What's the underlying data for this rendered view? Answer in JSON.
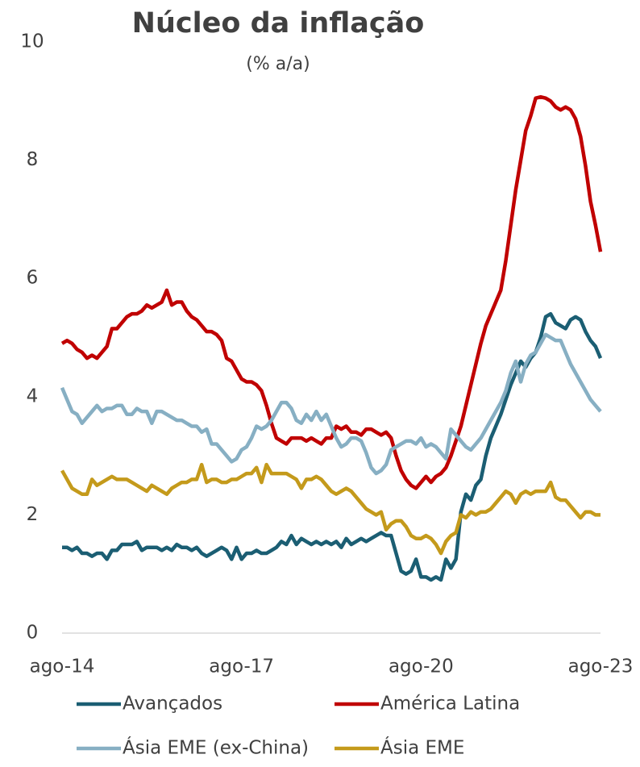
{
  "chart_data": {
    "type": "line",
    "title": "Núcleo da inflação",
    "subtitle": "(% a/a)",
    "categories": [
      "ago-14",
      null,
      null,
      null,
      null,
      null,
      null,
      null,
      null,
      null,
      null,
      null,
      null,
      null,
      null,
      null,
      null,
      null,
      null,
      null,
      null,
      null,
      null,
      null,
      null,
      null,
      null,
      null,
      null,
      null,
      null,
      null,
      null,
      null,
      null,
      null,
      "ago-17",
      null,
      null,
      null,
      null,
      null,
      null,
      null,
      null,
      null,
      null,
      null,
      null,
      null,
      null,
      null,
      null,
      null,
      null,
      null,
      null,
      null,
      null,
      null,
      null,
      null,
      null,
      null,
      null,
      null,
      null,
      null,
      null,
      null,
      null,
      null,
      "ago-20",
      null,
      null,
      null,
      null,
      null,
      null,
      null,
      null,
      null,
      null,
      null,
      null,
      null,
      null,
      null,
      null,
      null,
      null,
      null,
      null,
      null,
      null,
      null,
      null,
      null,
      null,
      null,
      null,
      null,
      null,
      null,
      null,
      null,
      null,
      null,
      "ago-23"
    ],
    "series": [
      {
        "name": "Avançados",
        "color": "#1b5e73",
        "values": [
          1.45,
          1.45,
          1.4,
          1.45,
          1.35,
          1.35,
          1.3,
          1.35,
          1.35,
          1.25,
          1.4,
          1.4,
          1.5,
          1.5,
          1.5,
          1.55,
          1.4,
          1.45,
          1.45,
          1.45,
          1.4,
          1.45,
          1.4,
          1.5,
          1.45,
          1.45,
          1.4,
          1.45,
          1.35,
          1.3,
          1.35,
          1.4,
          1.45,
          1.4,
          1.25,
          1.45,
          1.25,
          1.35,
          1.35,
          1.4,
          1.35,
          1.35,
          1.4,
          1.45,
          1.55,
          1.5,
          1.65,
          1.5,
          1.6,
          1.55,
          1.5,
          1.55,
          1.5,
          1.55,
          1.5,
          1.55,
          1.45,
          1.6,
          1.5,
          1.55,
          1.6,
          1.55,
          1.6,
          1.65,
          1.7,
          1.65,
          1.65,
          1.35,
          1.05,
          1.0,
          1.05,
          1.25,
          0.95,
          0.95,
          0.9,
          0.95,
          0.9,
          1.25,
          1.1,
          1.25,
          2.05,
          2.35,
          2.25,
          2.5,
          2.6,
          3.0,
          3.3,
          3.5,
          3.7,
          3.95,
          4.2,
          4.4,
          4.6,
          4.5,
          4.65,
          4.75,
          5.0,
          5.35,
          5.4,
          5.25,
          5.2,
          5.15,
          5.3,
          5.35,
          5.3,
          5.1,
          4.95,
          4.85,
          4.65
        ]
      },
      {
        "name": "América Latina",
        "color": "#c00000",
        "values": [
          4.9,
          4.95,
          4.9,
          4.8,
          4.75,
          4.65,
          4.7,
          4.65,
          4.75,
          4.85,
          5.15,
          5.15,
          5.25,
          5.35,
          5.4,
          5.4,
          5.45,
          5.55,
          5.5,
          5.55,
          5.6,
          5.8,
          5.55,
          5.6,
          5.6,
          5.45,
          5.35,
          5.3,
          5.2,
          5.1,
          5.1,
          5.05,
          4.95,
          4.65,
          4.6,
          4.45,
          4.3,
          4.25,
          4.25,
          4.2,
          4.1,
          3.85,
          3.55,
          3.3,
          3.25,
          3.2,
          3.3,
          3.3,
          3.3,
          3.25,
          3.3,
          3.25,
          3.2,
          3.3,
          3.3,
          3.5,
          3.45,
          3.5,
          3.4,
          3.4,
          3.35,
          3.45,
          3.45,
          3.4,
          3.35,
          3.4,
          3.3,
          3.0,
          2.75,
          2.6,
          2.5,
          2.45,
          2.55,
          2.65,
          2.55,
          2.65,
          2.7,
          2.8,
          3.0,
          3.25,
          3.5,
          3.85,
          4.2,
          4.55,
          4.9,
          5.2,
          5.4,
          5.6,
          5.8,
          6.3,
          6.9,
          7.5,
          8.0,
          8.5,
          8.75,
          9.05,
          9.07,
          9.05,
          9.0,
          8.9,
          8.85,
          8.9,
          8.85,
          8.7,
          8.4,
          7.9,
          7.3,
          6.9,
          6.45
        ]
      },
      {
        "name": "Ásia EME (ex-China)",
        "color": "#87afc3",
        "values": [
          4.15,
          3.95,
          3.75,
          3.7,
          3.55,
          3.65,
          3.75,
          3.85,
          3.75,
          3.8,
          3.8,
          3.85,
          3.85,
          3.7,
          3.7,
          3.8,
          3.75,
          3.75,
          3.55,
          3.75,
          3.75,
          3.7,
          3.65,
          3.6,
          3.6,
          3.55,
          3.5,
          3.5,
          3.4,
          3.45,
          3.2,
          3.2,
          3.1,
          3.0,
          2.9,
          2.95,
          3.1,
          3.15,
          3.3,
          3.5,
          3.45,
          3.5,
          3.6,
          3.75,
          3.9,
          3.9,
          3.8,
          3.6,
          3.55,
          3.7,
          3.6,
          3.75,
          3.6,
          3.7,
          3.5,
          3.3,
          3.15,
          3.2,
          3.3,
          3.3,
          3.25,
          3.05,
          2.8,
          2.7,
          2.75,
          2.85,
          3.1,
          3.15,
          3.2,
          3.25,
          3.25,
          3.2,
          3.3,
          3.15,
          3.2,
          3.15,
          3.05,
          2.95,
          3.45,
          3.35,
          3.25,
          3.15,
          3.1,
          3.2,
          3.3,
          3.45,
          3.6,
          3.75,
          3.9,
          4.1,
          4.4,
          4.6,
          4.25,
          4.55,
          4.7,
          4.75,
          4.9,
          5.05,
          5.0,
          4.95,
          4.95,
          4.75,
          4.55,
          4.4,
          4.25,
          4.1,
          3.95,
          3.85,
          3.75
        ]
      },
      {
        "name": "Ásia EME",
        "color": "#c49a1b",
        "values": [
          2.75,
          2.6,
          2.45,
          2.4,
          2.35,
          2.35,
          2.6,
          2.5,
          2.55,
          2.6,
          2.65,
          2.6,
          2.6,
          2.6,
          2.55,
          2.5,
          2.45,
          2.4,
          2.5,
          2.45,
          2.4,
          2.35,
          2.45,
          2.5,
          2.55,
          2.55,
          2.6,
          2.6,
          2.85,
          2.55,
          2.6,
          2.6,
          2.55,
          2.55,
          2.6,
          2.6,
          2.65,
          2.7,
          2.7,
          2.8,
          2.55,
          2.85,
          2.7,
          2.7,
          2.7,
          2.7,
          2.65,
          2.6,
          2.45,
          2.6,
          2.6,
          2.65,
          2.6,
          2.5,
          2.4,
          2.35,
          2.4,
          2.45,
          2.4,
          2.3,
          2.2,
          2.1,
          2.05,
          2.0,
          2.05,
          1.75,
          1.85,
          1.9,
          1.9,
          1.8,
          1.65,
          1.6,
          1.6,
          1.65,
          1.6,
          1.5,
          1.35,
          1.55,
          1.65,
          1.7,
          2.0,
          1.95,
          2.05,
          2.0,
          2.05,
          2.05,
          2.1,
          2.2,
          2.3,
          2.4,
          2.35,
          2.2,
          2.35,
          2.4,
          2.35,
          2.4,
          2.4,
          2.4,
          2.55,
          2.3,
          2.25,
          2.25,
          2.15,
          2.05,
          1.95,
          2.05,
          2.05,
          2.0,
          2.0
        ]
      }
    ],
    "ylim": [
      0,
      10
    ],
    "yticks": [
      0,
      2,
      4,
      6,
      8,
      10
    ],
    "grid": false,
    "legend": "bottom"
  }
}
